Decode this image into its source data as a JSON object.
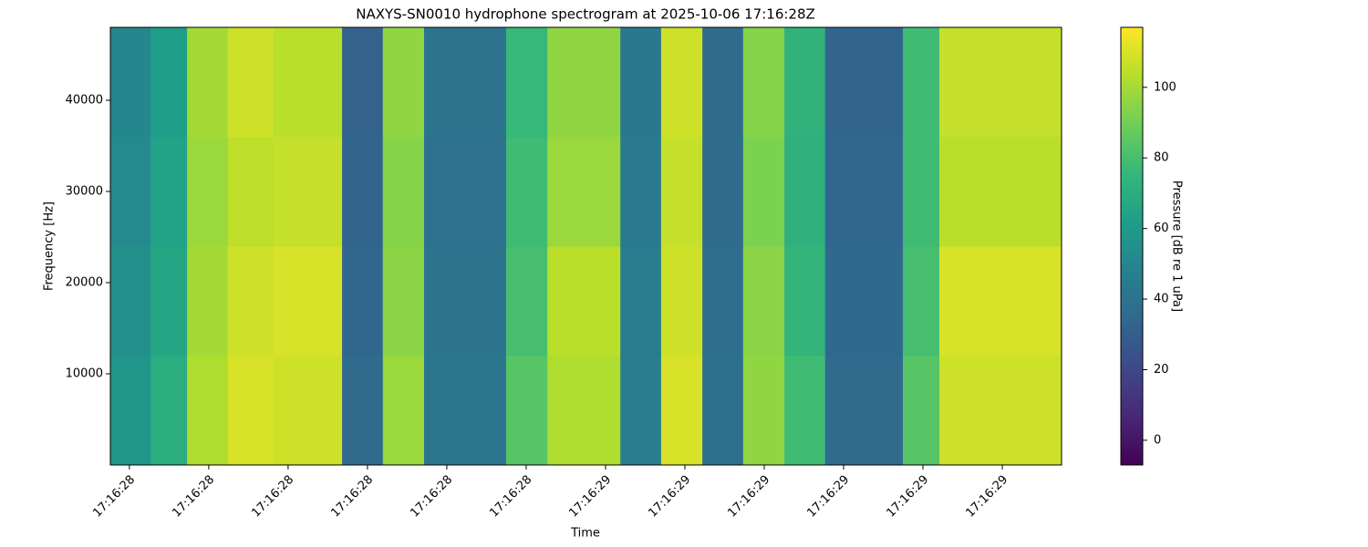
{
  "chart_data": {
    "type": "heatmap",
    "title": "NAXYS-SN0010 hydrophone spectrogram at 2025-10-06 17:16:28Z",
    "xlabel": "Time",
    "ylabel": "Frequency [Hz]",
    "colorbar_label": "Pressure [dB re 1 uPa]",
    "colormap": "viridis",
    "x_edges": [
      28.064,
      28.14,
      28.209,
      28.286,
      28.372,
      28.502,
      28.579,
      28.657,
      28.812,
      28.89,
      29.028,
      29.105,
      29.183,
      29.26,
      29.338,
      29.415,
      29.562,
      29.631,
      29.862
    ],
    "y_edges": [
      0,
      12000,
      24000,
      36000,
      48000
    ],
    "z": [
      [
        58,
        70,
        102,
        110,
        108,
        36,
        98,
        42,
        84,
        102,
        46,
        110,
        38,
        96,
        78,
        36,
        84,
        108
      ],
      [
        55,
        66,
        100,
        108,
        110,
        34,
        95,
        40,
        80,
        104,
        45,
        108,
        37,
        95,
        74,
        35,
        80,
        110
      ],
      [
        52,
        64,
        98,
        105,
        106,
        33,
        94,
        39,
        78,
        98,
        44,
        106,
        36,
        92,
        72,
        34,
        78,
        104
      ],
      [
        50,
        62,
        100,
        108,
        104,
        32,
        96,
        40,
        76,
        96,
        43,
        108,
        36,
        94,
        73,
        33,
        78,
        106
      ]
    ],
    "xlim": [
      28.064,
      29.862
    ],
    "xticks": [
      {
        "value": 28.1,
        "label": "17:16:28"
      },
      {
        "value": 28.25,
        "label": "17:16:28"
      },
      {
        "value": 28.4,
        "label": "17:16:28"
      },
      {
        "value": 28.55,
        "label": "17:16:28"
      },
      {
        "value": 28.7,
        "label": "17:16:28"
      },
      {
        "value": 28.85,
        "label": "17:16:28"
      },
      {
        "value": 29.0,
        "label": "17:16:29"
      },
      {
        "value": 29.15,
        "label": "17:16:29"
      },
      {
        "value": 29.3,
        "label": "17:16:29"
      },
      {
        "value": 29.45,
        "label": "17:16:29"
      },
      {
        "value": 29.6,
        "label": "17:16:29"
      },
      {
        "value": 29.75,
        "label": "17:16:29"
      }
    ],
    "ylim": [
      0,
      48000
    ],
    "yticks": [
      10000,
      20000,
      30000,
      40000
    ],
    "clim": [
      -7,
      117
    ],
    "cticks": [
      0,
      20,
      40,
      60,
      80,
      100
    ]
  }
}
